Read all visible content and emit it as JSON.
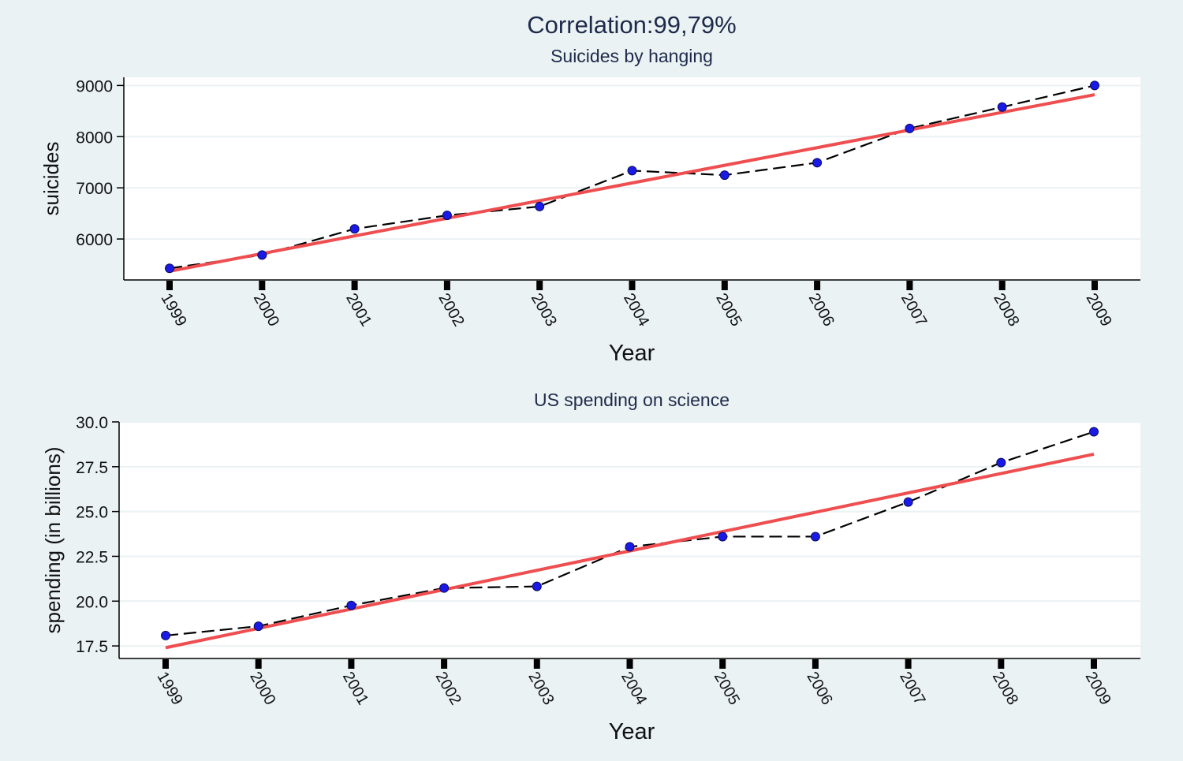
{
  "title": "Correlation:99,79%",
  "colors": {
    "background": "#eaf2f3",
    "plot_background": "#ffffff",
    "gridline": "#eaf2f3",
    "fit_line": "#ef4e50",
    "data_line": "#000000",
    "marker": "#1a1ae6",
    "title_text": "#1e2a4a",
    "axis_text": "#111111"
  },
  "chart_data": [
    {
      "type": "line",
      "title": "Suicides by hanging",
      "xlabel": "Year",
      "ylabel": "suicides",
      "x": [
        1999,
        2000,
        2001,
        2002,
        2003,
        2004,
        2005,
        2006,
        2007,
        2008,
        2009
      ],
      "series": [
        {
          "style": "dashed-with-markers",
          "values": [
            5427,
            5688,
            6198,
            6462,
            6635,
            7336,
            7248,
            7491,
            8161,
            8578,
            9000
          ]
        },
        {
          "style": "linear-fit",
          "values": [
            5370,
            5715,
            6060,
            6405,
            6750,
            7095,
            7440,
            7785,
            8130,
            8475,
            8820
          ]
        }
      ],
      "ylim": [
        5200,
        9160
      ],
      "yticks": [
        6000,
        7000,
        8000,
        9000
      ],
      "yticklabels": [
        "6000",
        "7000",
        "8000",
        "9000"
      ],
      "grid": true
    },
    {
      "type": "line",
      "title": "US spending on science",
      "xlabel": "Year",
      "ylabel": "spending (in billions)",
      "x": [
        1999,
        2000,
        2001,
        2002,
        2003,
        2004,
        2005,
        2006,
        2007,
        2008,
        2009
      ],
      "series": [
        {
          "style": "dashed-with-markers",
          "values": [
            18.08,
            18.6,
            19.76,
            20.73,
            20.82,
            23.03,
            23.6,
            23.6,
            25.53,
            27.73,
            29.45
          ]
        },
        {
          "style": "linear-fit",
          "values": [
            17.4,
            18.48,
            19.56,
            20.64,
            21.72,
            22.8,
            23.88,
            24.96,
            26.04,
            27.12,
            28.2
          ]
        }
      ],
      "ylim": [
        16.8,
        30.0
      ],
      "yticks": [
        17.5,
        20.0,
        22.5,
        25.0,
        27.5,
        30.0
      ],
      "yticklabels": [
        "17.5",
        "20.0",
        "22.5",
        "25.0",
        "27.5",
        "30.0"
      ],
      "grid": true
    }
  ]
}
